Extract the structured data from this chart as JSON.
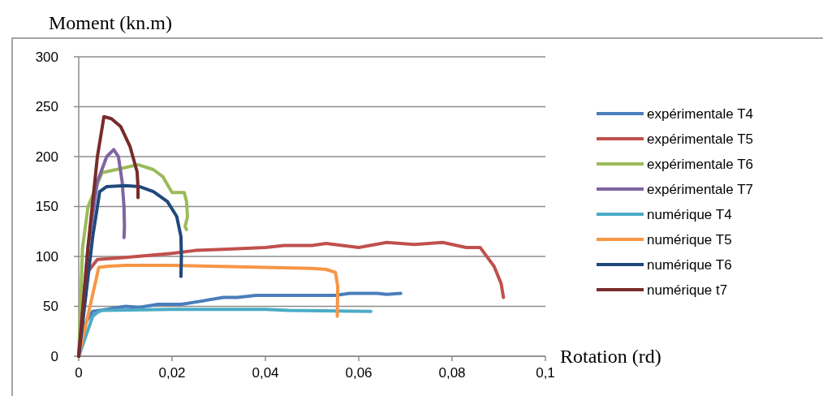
{
  "chart_data": {
    "type": "line",
    "ylabel": "Moment (kn.m)",
    "xlabel": "Rotation (rd)",
    "xlim": [
      0,
      0.1
    ],
    "xticks": [
      {
        "value": 0,
        "label": "0"
      },
      {
        "value": 0.02,
        "label": "0,02"
      },
      {
        "value": 0.04,
        "label": "0,04"
      },
      {
        "value": 0.06,
        "label": "0,06"
      },
      {
        "value": 0.08,
        "label": "0,08"
      },
      {
        "value": 0.1,
        "label": "0,1"
      }
    ],
    "ylim": [
      0,
      300
    ],
    "yticks": [
      0,
      50,
      100,
      150,
      200,
      250,
      300
    ],
    "grid": "y",
    "legend": "right",
    "marker": "none",
    "line_style": "solid",
    "series": [
      {
        "name": "expérimentale T4",
        "color": "#4a7ebb",
        "x": [
          0,
          0.001,
          0.003,
          0.006,
          0.01,
          0.013,
          0.017,
          0.022,
          0.026,
          0.031,
          0.034,
          0.038,
          0.045,
          0.055,
          0.058,
          0.064,
          0.066,
          0.069
        ],
        "values": [
          0,
          30,
          45,
          47,
          50,
          49,
          52,
          52,
          55,
          59,
          59,
          61,
          61,
          61,
          63,
          63,
          62,
          63
        ]
      },
      {
        "name": "expérimentale T5",
        "color": "#c0504d",
        "x": [
          0,
          0.002,
          0.004,
          0.01,
          0.015,
          0.02,
          0.025,
          0.03,
          0.04,
          0.044,
          0.05,
          0.053,
          0.06,
          0.066,
          0.072,
          0.078,
          0.083,
          0.086,
          0.089,
          0.0905,
          0.091
        ],
        "values": [
          0,
          85,
          97,
          99,
          101,
          103,
          106,
          107,
          109,
          111,
          111,
          113,
          109,
          114,
          112,
          114,
          109,
          109,
          90,
          73,
          59
        ]
      },
      {
        "name": "expérimentale T6",
        "color": "#9bbb59",
        "x": [
          0,
          0.0008,
          0.002,
          0.005,
          0.009,
          0.0127,
          0.016,
          0.018,
          0.02,
          0.0226,
          0.0231,
          0.0233,
          0.0228,
          0.0231
        ],
        "values": [
          0,
          108,
          150,
          184,
          188,
          192,
          187,
          180,
          164,
          164,
          155,
          140,
          130,
          127
        ]
      },
      {
        "name": "expérimentale T7",
        "color": "#8064a2",
        "x": [
          0,
          0.002,
          0.004,
          0.006,
          0.0075,
          0.0085,
          0.0093,
          0.0097,
          0.0098,
          0.0097
        ],
        "values": [
          0,
          110,
          175,
          200,
          207,
          200,
          175,
          150,
          130,
          119
        ]
      },
      {
        "name": "numérique T4",
        "color": "#4bacc6",
        "x": [
          0,
          0.003,
          0.004,
          0.005,
          0.02,
          0.04,
          0.045,
          0.0626
        ],
        "values": [
          0,
          40,
          44,
          46,
          47,
          47,
          46,
          45
        ]
      },
      {
        "name": "numérique  T5",
        "color": "#f79646",
        "x": [
          0,
          0.0043,
          0.006,
          0.01,
          0.02,
          0.03,
          0.04,
          0.05,
          0.053,
          0.055,
          0.0555,
          0.0554
        ],
        "values": [
          0,
          89,
          90,
          91,
          91,
          90,
          89,
          88,
          87,
          84,
          70,
          40
        ]
      },
      {
        "name": "numérique T6",
        "color": "#1f497d",
        "x": [
          0,
          0.003,
          0.0045,
          0.006,
          0.01,
          0.013,
          0.016,
          0.019,
          0.021,
          0.0219,
          0.022,
          0.0219
        ],
        "values": [
          0,
          120,
          165,
          170,
          171,
          170,
          165,
          155,
          140,
          120,
          100,
          80
        ]
      },
      {
        "name": "numérique t7",
        "color": "#772c2a",
        "x": [
          0,
          0.002,
          0.004,
          0.0054,
          0.007,
          0.009,
          0.011,
          0.0125,
          0.0127,
          0.0127
        ],
        "values": [
          0,
          110,
          200,
          240,
          238,
          230,
          210,
          185,
          170,
          159
        ]
      }
    ]
  }
}
